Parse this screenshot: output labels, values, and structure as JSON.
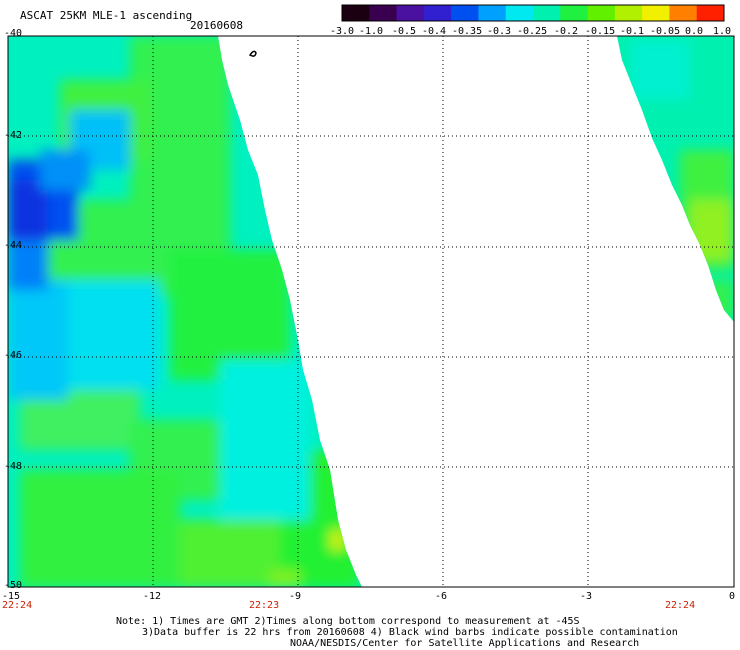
{
  "header": {
    "title": "ASCAT 25KM MLE-1 ascending",
    "date": "20160608"
  },
  "colorbar": {
    "labels": [
      "-3.0",
      "-1.0",
      "-0.5",
      "-0.4",
      "-0.35",
      "-0.3",
      "-0.25",
      "-0.2",
      "-0.15",
      "-0.1",
      "-0.05",
      "0.0",
      "1.0"
    ],
    "colors": [
      "#1a0010",
      "#3a0050",
      "#4a10a0",
      "#3020d0",
      "#0050f0",
      "#00a0ff",
      "#00e8f0",
      "#00f0b0",
      "#20f040",
      "#60f000",
      "#b0f000",
      "#f0f000",
      "#ff8000",
      "#ff2000"
    ]
  },
  "axes": {
    "lon_ticks": [
      "-15",
      "-12",
      "-9",
      "-6",
      "-3",
      "0"
    ],
    "lat_ticks": [
      "-40",
      "-42",
      "-44",
      "-46",
      "-48",
      "-50"
    ]
  },
  "times": [
    "22:24",
    "22:23",
    "22:24"
  ],
  "notes": [
    "Note: 1) Times are GMT 2)Times along bottom correspond to measurement at -45S",
    "3)Data buffer is 22 hrs from 20160608 4) Black wind barbs indicate possible contamination",
    "NOAA/NESDIS/Center for Satellite Applications and Research"
  ]
}
